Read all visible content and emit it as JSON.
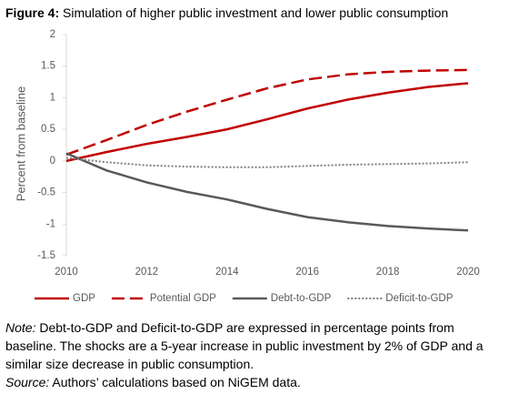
{
  "chart_data": {
    "type": "line",
    "figure_label": "Figure 4:",
    "title": "Simulation of higher public investment and lower public consumption",
    "y_label": "Percent from baseline",
    "x": [
      2010,
      2011,
      2012,
      2013,
      2014,
      2015,
      2016,
      2017,
      2018,
      2019,
      2020
    ],
    "series": [
      {
        "name": "GDP",
        "color": "#c00000",
        "dash": "solid",
        "values": [
          0,
          0.14,
          0.27,
          0.38,
          0.5,
          0.66,
          0.83,
          0.97,
          1.08,
          1.17,
          1.23
        ]
      },
      {
        "name": "Potential GDP",
        "color": "#c00000",
        "dash": "dashed",
        "values": [
          0.1,
          0.33,
          0.57,
          0.78,
          0.97,
          1.15,
          1.29,
          1.37,
          1.41,
          1.43,
          1.44
        ]
      },
      {
        "name": "Debt-to-GDP",
        "color": "#595959",
        "dash": "solid",
        "values": [
          0.12,
          -0.15,
          -0.34,
          -0.49,
          -0.61,
          -0.76,
          -0.89,
          -0.97,
          -1.03,
          -1.07,
          -1.1
        ]
      },
      {
        "name": "Deficit-to-GDP",
        "color": "#7f7f7f",
        "dash": "dotted",
        "values": [
          0.05,
          -0.02,
          -0.07,
          -0.09,
          -0.1,
          -0.1,
          -0.08,
          -0.06,
          -0.05,
          -0.04,
          -0.02
        ]
      }
    ],
    "xlim": [
      2010,
      2020
    ],
    "xticks": [
      2010,
      2012,
      2014,
      2016,
      2018,
      2020
    ],
    "ylim": [
      -1.5,
      2
    ],
    "yticks": [
      -1.5,
      -1,
      -0.5,
      0,
      0.5,
      1,
      1.5,
      2
    ],
    "grid": false,
    "legend": "bottom"
  },
  "note": {
    "label": "Note:",
    "text": " Debt-to-GDP and Deficit-to-GDP are expressed in percentage points from baseline. The shocks are a 5-year increase in public investment by 2% of GDP and a similar size decrease in public consumption.",
    "source_label": "Source:",
    "source_text": " Authors’ calculations based on NiGEM data."
  }
}
